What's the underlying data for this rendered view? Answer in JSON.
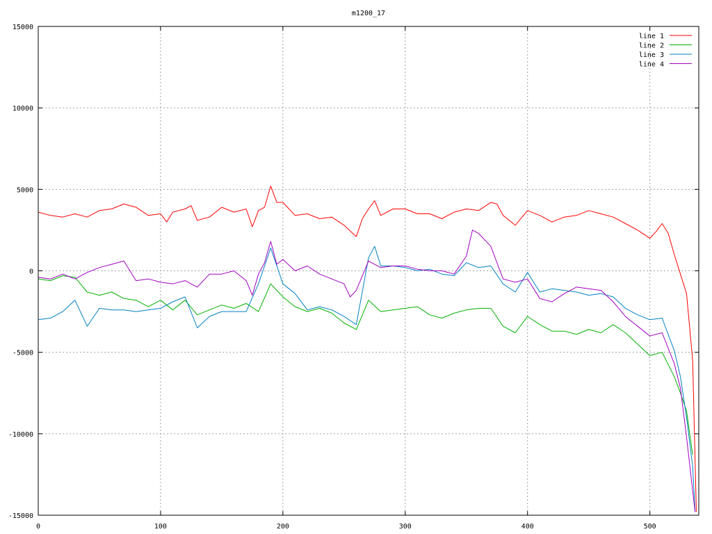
{
  "chart_data": {
    "type": "line",
    "title": "m1200_17",
    "xlabel": "",
    "ylabel": "",
    "xlim": [
      0,
      540
    ],
    "ylim": [
      -15000,
      15000
    ],
    "xticks": [
      0,
      100,
      200,
      300,
      400,
      500
    ],
    "yticks": [
      -15000,
      -10000,
      -5000,
      0,
      5000,
      10000,
      15000
    ],
    "xtick_labels": [
      "0",
      "100",
      "200",
      "300",
      "400",
      "500"
    ],
    "ytick_labels": [
      "-15000",
      "-10000",
      "-5000",
      "0",
      "5000",
      "10000",
      "15000"
    ],
    "grid": true,
    "legend_position": "top-right",
    "series": [
      {
        "name": "line 1",
        "color": "#ff0000",
        "x": [
          0,
          10,
          20,
          30,
          40,
          50,
          60,
          70,
          80,
          90,
          100,
          105,
          110,
          120,
          125,
          130,
          140,
          150,
          160,
          170,
          175,
          180,
          185,
          190,
          195,
          200,
          210,
          220,
          230,
          240,
          250,
          260,
          265,
          270,
          275,
          280,
          290,
          300,
          310,
          320,
          330,
          340,
          350,
          360,
          370,
          375,
          380,
          390,
          400,
          410,
          420,
          430,
          440,
          450,
          460,
          470,
          480,
          490,
          500,
          505,
          510,
          515,
          520,
          525,
          530,
          535,
          538
        ],
        "y": [
          3600,
          3400,
          3300,
          3500,
          3300,
          3700,
          3800,
          4100,
          3900,
          3400,
          3500,
          3000,
          3600,
          3800,
          4000,
          3100,
          3300,
          3900,
          3600,
          3800,
          2700,
          3700,
          3900,
          5200,
          4200,
          4200,
          3400,
          3500,
          3200,
          3300,
          2800,
          2100,
          3200,
          3800,
          4300,
          3400,
          3800,
          3800,
          3500,
          3500,
          3200,
          3600,
          3800,
          3700,
          4200,
          4100,
          3400,
          2800,
          3700,
          3400,
          3000,
          3300,
          3400,
          3700,
          3500,
          3300,
          2900,
          2500,
          2000,
          2400,
          2900,
          2300,
          1000,
          -200,
          -1400,
          -5500,
          -14800
        ]
      },
      {
        "name": "line 2",
        "color": "#00b000",
        "x": [
          0,
          10,
          20,
          30,
          40,
          50,
          60,
          70,
          80,
          90,
          100,
          110,
          120,
          130,
          140,
          150,
          160,
          170,
          180,
          190,
          200,
          210,
          220,
          230,
          240,
          250,
          260,
          270,
          280,
          290,
          300,
          310,
          320,
          330,
          340,
          350,
          360,
          370,
          380,
          390,
          400,
          410,
          420,
          430,
          440,
          450,
          460,
          470,
          480,
          490,
          500,
          510,
          520,
          525,
          530,
          535
        ],
        "y": [
          -500,
          -600,
          -300,
          -400,
          -1300,
          -1500,
          -1300,
          -1700,
          -1800,
          -2200,
          -1800,
          -2400,
          -1800,
          -2700,
          -2400,
          -2100,
          -2300,
          -2000,
          -2500,
          -800,
          -1600,
          -2200,
          -2500,
          -2300,
          -2600,
          -3200,
          -3600,
          -1800,
          -2500,
          -2400,
          -2300,
          -2200,
          -2700,
          -2900,
          -2600,
          -2400,
          -2300,
          -2300,
          -3400,
          -3800,
          -2800,
          -3300,
          -3700,
          -3700,
          -3900,
          -3600,
          -3800,
          -3300,
          -3800,
          -4500,
          -5200,
          -5000,
          -6500,
          -7500,
          -8600,
          -11300
        ]
      },
      {
        "name": "line 3",
        "color": "#0080c0",
        "x": [
          0,
          10,
          20,
          30,
          40,
          50,
          60,
          70,
          80,
          90,
          100,
          110,
          120,
          130,
          140,
          150,
          160,
          170,
          180,
          190,
          200,
          210,
          220,
          230,
          240,
          250,
          260,
          270,
          275,
          280,
          290,
          300,
          310,
          320,
          330,
          340,
          350,
          360,
          370,
          380,
          390,
          400,
          410,
          420,
          430,
          440,
          450,
          460,
          470,
          480,
          490,
          500,
          510,
          520,
          525,
          530,
          535,
          537
        ],
        "y": [
          -3000,
          -2900,
          -2500,
          -1800,
          -3400,
          -2300,
          -2400,
          -2400,
          -2500,
          -2400,
          -2300,
          -1900,
          -1600,
          -3500,
          -2800,
          -2500,
          -2500,
          -2500,
          -800,
          1400,
          -800,
          -1400,
          -2400,
          -2200,
          -2400,
          -2800,
          -3300,
          800,
          1500,
          300,
          300,
          200,
          0,
          100,
          -200,
          -300,
          500,
          200,
          300,
          -800,
          -1300,
          -100,
          -1300,
          -1100,
          -1200,
          -1300,
          -1500,
          -1400,
          -1600,
          -2300,
          -2700,
          -3000,
          -2900,
          -4900,
          -6500,
          -9000,
          -12000,
          -14800
        ]
      },
      {
        "name": "line 4",
        "color": "#a000c0",
        "x": [
          0,
          10,
          20,
          30,
          40,
          50,
          60,
          70,
          80,
          90,
          100,
          110,
          120,
          130,
          140,
          150,
          160,
          170,
          175,
          180,
          185,
          190,
          195,
          200,
          210,
          220,
          230,
          240,
          250,
          255,
          260,
          270,
          280,
          290,
          300,
          310,
          320,
          330,
          340,
          350,
          355,
          360,
          370,
          380,
          390,
          400,
          410,
          420,
          430,
          440,
          450,
          460,
          470,
          480,
          490,
          500,
          510,
          520,
          525,
          530,
          535,
          537
        ],
        "y": [
          -400,
          -500,
          -200,
          -500,
          -100,
          200,
          400,
          600,
          -600,
          -500,
          -700,
          -800,
          -600,
          -1000,
          -200,
          -200,
          0,
          -600,
          -1500,
          -200,
          500,
          1800,
          400,
          700,
          0,
          300,
          -200,
          -500,
          -800,
          -1600,
          -1200,
          600,
          200,
          300,
          300,
          100,
          0,
          0,
          -200,
          900,
          2500,
          2300,
          1500,
          -500,
          -700,
          -500,
          -1700,
          -1900,
          -1400,
          -1000,
          -1100,
          -1200,
          -1900,
          -2800,
          -3400,
          -4000,
          -3800,
          -5700,
          -7200,
          -10200,
          -13500,
          -14800
        ]
      }
    ]
  }
}
